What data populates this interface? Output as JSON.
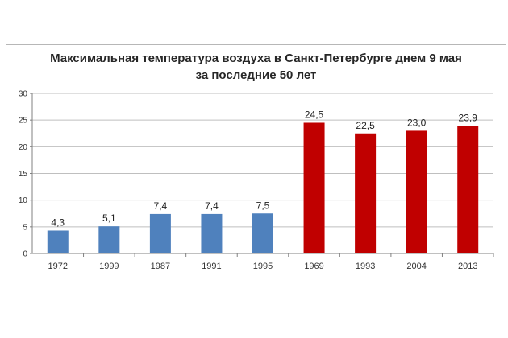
{
  "chart_data": {
    "type": "bar",
    "title_line1": "Максимальная температура воздуха в Санкт-Петербурге днем 9 мая",
    "title_line2": "за последние 50 лет",
    "xlabel": "",
    "ylabel": "",
    "ylim": [
      0,
      30
    ],
    "yticks": [
      "0",
      "5",
      "10",
      "15",
      "20",
      "25",
      "30"
    ],
    "grid": true,
    "legend": "none",
    "categories": [
      "1972",
      "1999",
      "1987",
      "1991",
      "1995",
      "1969",
      "1993",
      "2004",
      "2013"
    ],
    "values": [
      4.3,
      5.1,
      7.4,
      7.4,
      7.5,
      24.5,
      22.5,
      23.0,
      23.9
    ],
    "data_labels": [
      "4,3",
      "5,1",
      "7,4",
      "7,4",
      "7,5",
      "24,5",
      "22,5",
      "23,0",
      "23,9"
    ],
    "colors": [
      "#4f81bd",
      "#4f81bd",
      "#4f81bd",
      "#4f81bd",
      "#4f81bd",
      "#c00000",
      "#c00000",
      "#c00000",
      "#c00000"
    ],
    "gridline_color": "#bfbfbf",
    "axis_color": "#808080"
  }
}
